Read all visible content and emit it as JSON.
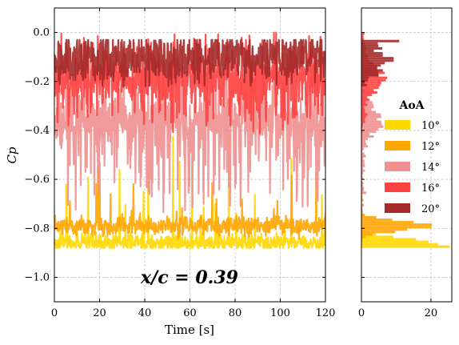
{
  "chart_data": [
    {
      "type": "line",
      "xlabel": "Time [s]",
      "ylabel": "Cp",
      "xlim": [
        0,
        120
      ],
      "ylim": [
        -1.1,
        0.1
      ],
      "xticks": [
        "0",
        "20",
        "40",
        "60",
        "80",
        "100",
        "120"
      ],
      "yticks": [
        "0.0",
        "−0.2",
        "−0.4",
        "−0.6",
        "−0.8",
        "−1.0"
      ],
      "grid": true,
      "annotation": "x/c = 0.39",
      "series": [
        {
          "name": "10°",
          "color": "#FFD700",
          "mean": -0.86,
          "range": [
            -0.88,
            -0.42
          ]
        },
        {
          "name": "12°",
          "color": "#FFA500",
          "mean": -0.79,
          "range": [
            -0.88,
            -0.53
          ]
        },
        {
          "name": "14°",
          "color": "#F08F8F",
          "mean": -0.35,
          "range": [
            -0.75,
            -0.05
          ]
        },
        {
          "name": "16°",
          "color": "#FF4040",
          "mean": -0.18,
          "range": [
            -0.42,
            0.0
          ]
        },
        {
          "name": "20°",
          "color": "#A52A2A",
          "mean": -0.1,
          "range": [
            -0.22,
            -0.03
          ]
        }
      ]
    },
    {
      "type": "histogram",
      "orientation": "horizontal",
      "xlim": [
        0,
        26
      ],
      "xticks": [
        "0",
        "20"
      ],
      "ylim": [
        -1.1,
        0.1
      ],
      "grid": true,
      "legend": {
        "title": "AoA",
        "placement": "right",
        "entries": [
          "10°",
          "12°",
          "14°",
          "16°",
          "20°"
        ]
      }
    }
  ]
}
